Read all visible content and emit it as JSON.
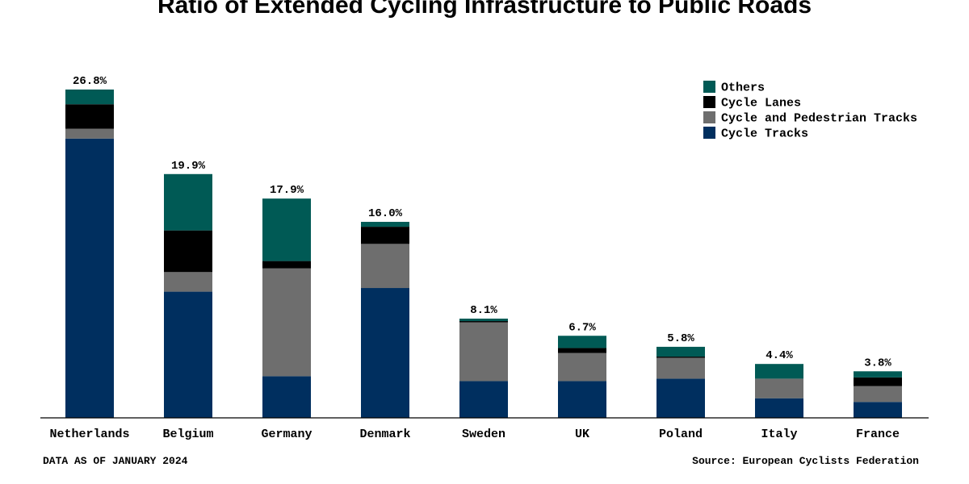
{
  "chart_data": {
    "type": "bar",
    "stacked": true,
    "title": "Ratio of Extended Cycling Infrastructure to Public Roads",
    "categories": [
      "Netherlands",
      "Belgium",
      "Germany",
      "Denmark",
      "Sweden",
      "UK",
      "Poland",
      "Italy",
      "France"
    ],
    "totals_labels": [
      "26.8%",
      "19.9%",
      "17.9%",
      "16.0%",
      "8.1%",
      "6.7%",
      "5.8%",
      "4.4%",
      "3.8%"
    ],
    "totals": [
      26.8,
      19.9,
      17.9,
      16.0,
      8.1,
      6.7,
      5.8,
      4.4,
      3.8
    ],
    "series": [
      {
        "name": "Cycle Tracks",
        "color": "#002f5f",
        "values": [
          22.8,
          10.3,
          3.4,
          10.6,
          3.0,
          3.0,
          3.2,
          1.6,
          1.3
        ]
      },
      {
        "name": "Cycle and Pedestrian Tracks",
        "color": "#6e6e6e",
        "values": [
          0.8,
          1.6,
          8.8,
          3.6,
          4.8,
          2.3,
          1.7,
          1.6,
          1.3
        ]
      },
      {
        "name": "Cycle Lanes",
        "color": "#000000",
        "values": [
          2.0,
          3.4,
          0.6,
          1.4,
          0.1,
          0.4,
          0.1,
          0.0,
          0.7
        ]
      },
      {
        "name": "Others",
        "color": "#005a55",
        "values": [
          1.2,
          4.6,
          5.1,
          0.4,
          0.2,
          1.0,
          0.8,
          1.2,
          0.5
        ]
      }
    ],
    "legend_order": [
      "Others",
      "Cycle Lanes",
      "Cycle and Pedestrian Tracks",
      "Cycle Tracks"
    ],
    "legend_position": "top-right",
    "ylim": [
      0,
      28
    ],
    "grid": false,
    "footnote_left": "DATA AS OF JANUARY 2024",
    "footnote_right": "Source: European Cyclists Federation"
  }
}
